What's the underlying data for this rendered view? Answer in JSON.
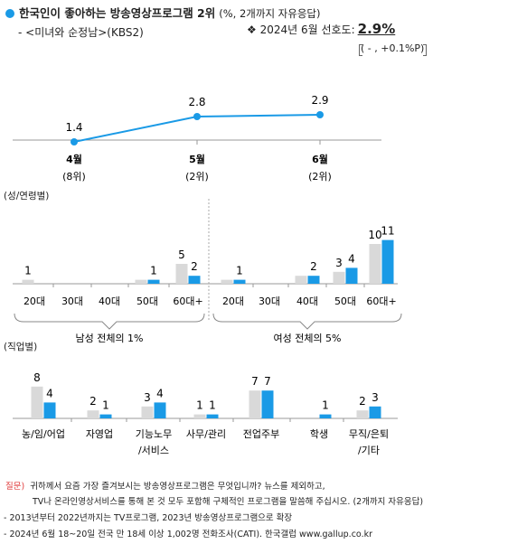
{
  "header": {
    "title": "한국인이 좋아하는 방송영상프로그램 2위",
    "title_note": "(%, 2개까지 자유응답)",
    "subtitle": "- <미녀와 순정남>(KBS2)",
    "pref_symbol": "❖",
    "pref_label": "2024년 6월 선호도:",
    "pref_value": "2.9%",
    "pref_change": "( - , +0.1%P)"
  },
  "colors": {
    "blue": "#1a9ae6",
    "gray": "#d9d9d9",
    "axis": "#999999"
  },
  "chart_data": [
    {
      "type": "line",
      "categories": [
        "4월",
        "5월",
        "6월"
      ],
      "category_sublabels": [
        "(8위)",
        "(2위)",
        "(2위)"
      ],
      "values": [
        1.4,
        2.8,
        2.9
      ]
    },
    {
      "type": "bar",
      "section_label": "(성/연령별)",
      "series": [
        {
          "values": [
            1,
            0,
            0,
            1,
            5,
            1,
            0,
            2,
            3,
            10
          ]
        },
        {
          "values": [
            0,
            0,
            0,
            1,
            2,
            1,
            0,
            2,
            4,
            11
          ]
        }
      ],
      "categories": [
        "20대",
        "30대",
        "40대",
        "50대",
        "60대+",
        "20대",
        "30대",
        "40대",
        "50대",
        "60대+"
      ],
      "value_labels": [
        [
          "1",
          "",
          "",
          "",
          "5",
          "",
          "",
          "",
          "3",
          "10"
        ],
        [
          "",
          "",
          "",
          "1",
          "2",
          "1",
          "",
          "2",
          "4",
          "11"
        ]
      ],
      "groups": [
        "남성 전체의 1%",
        "여성 전체의 5%"
      ]
    },
    {
      "type": "bar",
      "section_label": "(직업별)",
      "categories": [
        "농/임/어업",
        "자영업",
        "기능노무/서비스",
        "사무/관리",
        "전업주부",
        "학생",
        "무직/은퇴/기타"
      ],
      "category_lines": [
        [
          "농/임/어업"
        ],
        [
          "자영업"
        ],
        [
          "기능노무",
          "/서비스"
        ],
        [
          "사무/관리"
        ],
        [
          "전업주부"
        ],
        [
          "학생"
        ],
        [
          "무직/은퇴",
          "/기타"
        ]
      ],
      "series": [
        {
          "values": [
            8,
            2,
            3,
            1,
            7,
            0,
            2
          ]
        },
        {
          "values": [
            4,
            1,
            4,
            1,
            7,
            1,
            3
          ]
        }
      ],
      "value_labels": [
        [
          "8",
          "2",
          "3",
          "1",
          "7",
          "",
          "2"
        ],
        [
          "4",
          "1",
          "4",
          "1",
          "7",
          "1",
          "3"
        ]
      ]
    }
  ],
  "footer": {
    "question_tag": "질문)",
    "question_line1": "귀하께서 요즘 가장 즐겨보시는 방송영상프로그램은 무엇입니까? 뉴스를 제외하고,",
    "question_line2": "TV나 온라인영상서비스를 통해 본 것 모두 포함해 구체적인 프로그램을 말씀해 주십시오. (2개까지 자유응답)",
    "note1": "- 2013년부터 2022년까지는 TV프로그램, 2023년 방송영상프로그램으로 확장",
    "note2": "- 2024년 6월 18~20일 전국 만 18세 이상 1,002명 전화조사(CATI). 한국갤럽 www.gallup.co.kr"
  }
}
